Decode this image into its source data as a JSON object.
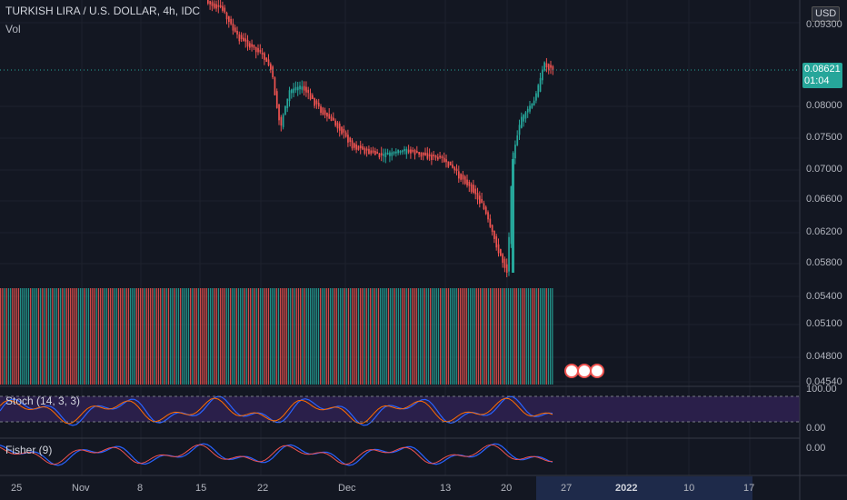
{
  "header": {
    "symbol": "TURKISH LIRA / U.S. DOLLAR, 4h, IDC",
    "vol_label": "Vol"
  },
  "price_axis": {
    "currency": "USD",
    "top_label": "0.09300",
    "ticks": [
      "0.08000",
      "0.07500",
      "0.07000",
      "0.06600",
      "0.06200",
      "0.05800",
      "0.05400",
      "0.05100",
      "0.04800",
      "0.04540"
    ],
    "current_price": "0.08621",
    "countdown": "01:04"
  },
  "stoch": {
    "label": "Stoch (14, 3, 3)",
    "ticks": [
      "100.00",
      "0.00"
    ]
  },
  "fisher": {
    "label": "Fisher (9)",
    "tick": "0.00"
  },
  "time_axis": {
    "labels": [
      "25",
      "Nov",
      "8",
      "15",
      "22",
      "Dec",
      "13",
      "20",
      "27",
      "2022",
      "10",
      "17"
    ]
  },
  "colors": {
    "background": "#131722",
    "up": "#26a69a",
    "down": "#ef5350",
    "stoch_band": "#2a1f4a",
    "stoch_k": "#2962ff",
    "stoch_d": "#ff6d00"
  },
  "chart_data": {
    "type": "candlestick",
    "interval": "4h",
    "price_scale": [
      0.0454,
      0.093
    ],
    "price_path": [
      {
        "x": "Nov 15",
        "price": 0.0935
      },
      {
        "x": "Nov 22",
        "price": 0.087
      },
      {
        "x": "Nov 23",
        "price": 0.077
      },
      {
        "x": "Nov 25",
        "price": 0.0825
      },
      {
        "x": "Dec",
        "price": 0.0745
      },
      {
        "x": "Dec 8",
        "price": 0.0725
      },
      {
        "x": "Dec 13",
        "price": 0.0715
      },
      {
        "x": "Dec 16",
        "price": 0.066
      },
      {
        "x": "Dec 20",
        "price": 0.0555
      },
      {
        "x": "Dec 20",
        "price": 0.071
      },
      {
        "x": "Dec 22",
        "price": 0.082
      },
      {
        "x": "Dec 24",
        "price": 0.08621
      }
    ]
  }
}
